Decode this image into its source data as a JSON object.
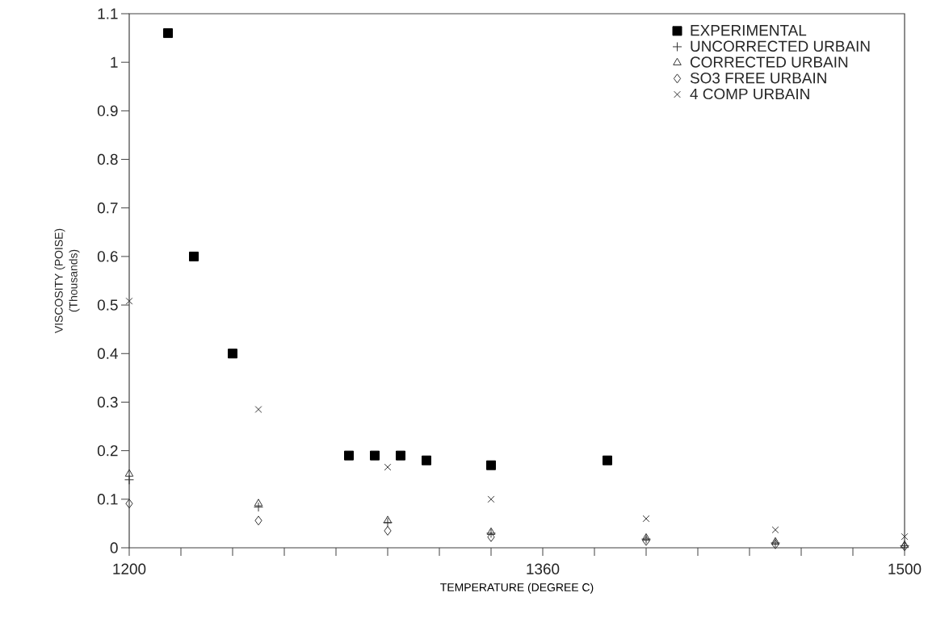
{
  "chart_data": {
    "type": "scatter",
    "xlabel": "TEMPERATURE (DEGREE C)",
    "ylabel": "VISCOSITY (POISE)",
    "annotations": [
      "(Thousands)"
    ],
    "xlim": [
      1200,
      1500
    ],
    "ylim": [
      0,
      1.1
    ],
    "xticks": [
      1200,
      {
        "value": 1220,
        "label": null
      },
      {
        "value": 1240,
        "label": null
      },
      {
        "value": 1260,
        "label": null
      },
      {
        "value": 1280,
        "label": null
      },
      {
        "value": 1300,
        "label": null
      },
      {
        "value": 1320,
        "label": null
      },
      {
        "value": 1340,
        "label": null
      },
      1360,
      {
        "value": 1380,
        "label": null
      },
      {
        "value": 1400,
        "label": null
      },
      {
        "value": 1420,
        "label": null
      },
      {
        "value": 1440,
        "label": null
      },
      {
        "value": 1460,
        "label": null
      },
      {
        "value": 1480,
        "label": null
      },
      1500
    ],
    "yticks": [
      0,
      0.1,
      0.2,
      0.3,
      0.4,
      0.5,
      0.6,
      0.7,
      0.8,
      0.9,
      1,
      1.1
    ],
    "grid": false,
    "legend": "top right",
    "series": [
      {
        "name": "EXPERIMENTAL",
        "color": "#000000",
        "marker": "square",
        "x": [
          1215,
          1225,
          1240,
          1285,
          1295,
          1305,
          1315,
          1340,
          1385
        ],
        "values": [
          1.06,
          0.6,
          0.4,
          0.19,
          0.19,
          0.19,
          0.18,
          0.17,
          0.18
        ]
      },
      {
        "name": "UNCORRECTED URBAIN",
        "color": "#333333",
        "marker": "plus",
        "x": [
          1200,
          1250,
          1300,
          1340,
          1400,
          1450,
          1500
        ],
        "values": [
          0.14,
          0.084,
          0.052,
          0.03,
          0.018,
          0.01,
          0.004
        ]
      },
      {
        "name": "CORRECTED URBAIN",
        "color": "#333333",
        "marker": "triangle",
        "x": [
          1200,
          1250,
          1300,
          1340,
          1400,
          1450,
          1500
        ],
        "values": [
          0.152,
          0.091,
          0.056,
          0.032,
          0.02,
          0.012,
          0.005
        ]
      },
      {
        "name": "SO3 FREE URBAIN",
        "color": "#333333",
        "marker": "diamond",
        "x": [
          1200,
          1250,
          1300,
          1340,
          1400,
          1450,
          1500
        ],
        "values": [
          0.091,
          0.056,
          0.035,
          0.022,
          0.014,
          0.007,
          0.003
        ]
      },
      {
        "name": "4 COMP URBAIN",
        "color": "#333333",
        "marker": "cross",
        "x": [
          1200,
          1250,
          1300,
          1340,
          1400,
          1450,
          1500
        ],
        "values": [
          0.508,
          0.285,
          0.166,
          0.1,
          0.06,
          0.037,
          0.023
        ]
      }
    ]
  }
}
